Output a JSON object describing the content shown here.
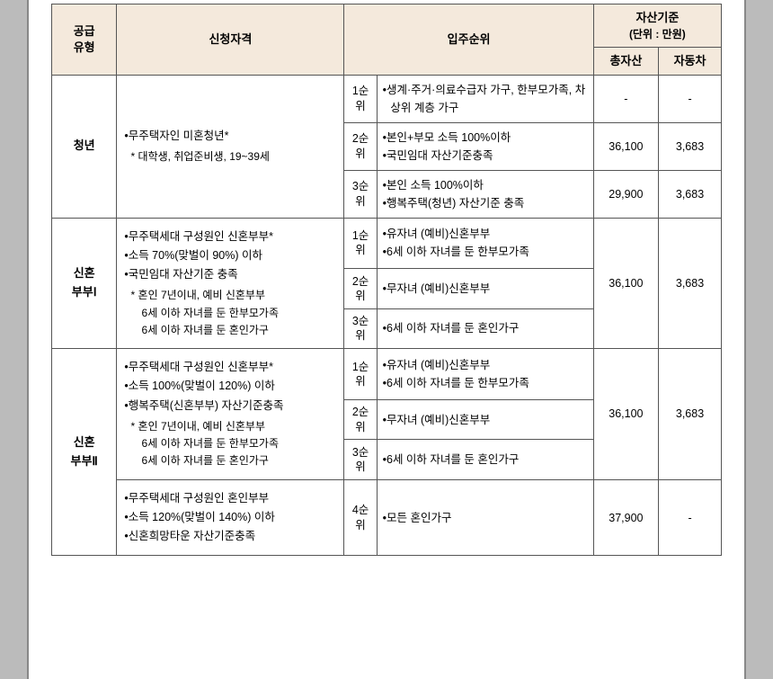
{
  "header": {
    "supplyType": "공급\n유형",
    "qualification": "신청자격",
    "priority": "입주순위",
    "assetStd": "자산기준",
    "assetUnit": "(단위 : 만원)",
    "totalAsset": "총자산",
    "car": "자동차"
  },
  "rows": [
    {
      "type": "청년",
      "qual_lines": [
        {
          "t": "bullet",
          "text": "•무주택자인 미혼청년*"
        },
        {
          "t": "note",
          "text": "* 대학생, 취업준비생, 19~39세"
        }
      ],
      "ranks": [
        {
          "rank": "1순위",
          "details": [
            "•생계·주거·의료수급자 가구, 한부모가족, 차상위 계층 가구"
          ],
          "asset": "-",
          "car": "-"
        },
        {
          "rank": "2순위",
          "details": [
            "•본인+부모 소득 100%이하",
            "•국민임대 자산기준충족"
          ],
          "asset": "36,100",
          "car": "3,683"
        },
        {
          "rank": "3순위",
          "details": [
            "•본인 소득 100%이하",
            "•행복주택(청년) 자산기준 충족"
          ],
          "asset": "29,900",
          "car": "3,683"
        }
      ]
    },
    {
      "type": "신혼\n부부Ⅰ",
      "qual_lines": [
        {
          "t": "bullet",
          "text": "•무주택세대 구성원인 신혼부부*"
        },
        {
          "t": "bullet",
          "text": "•소득 70%(맞벌이 90%) 이하"
        },
        {
          "t": "bullet",
          "text": "•국민임대 자산기준 충족"
        },
        {
          "t": "note",
          "text": "* 혼인 7년이내, 예비 신혼부부"
        },
        {
          "t": "sub",
          "text": "6세 이하 자녀를 둔 한부모가족"
        },
        {
          "t": "sub",
          "text": "6세 이하 자녀를 둔 혼인가구"
        }
      ],
      "ranks": [
        {
          "rank": "1순위",
          "details": [
            "•유자녀 (예비)신혼부부",
            "•6세 이하 자녀를 둔 한부모가족"
          ]
        },
        {
          "rank": "2순위",
          "details": [
            "•무자녀 (예비)신혼부부"
          ]
        },
        {
          "rank": "3순위",
          "details": [
            "•6세 이하 자녀를 둔 혼인가구"
          ]
        }
      ],
      "asset_merged": "36,100",
      "car_merged": "3,683"
    },
    {
      "type": "신혼\n부부Ⅱ",
      "type_rowspan_extra": 1,
      "qual_lines": [
        {
          "t": "bullet",
          "text": "•무주택세대 구성원인 신혼부부*"
        },
        {
          "t": "bullet",
          "text": "•소득 100%(맞벌이 120%) 이하"
        },
        {
          "t": "bullet",
          "text": "•행복주택(신혼부부) 자산기준충족"
        },
        {
          "t": "note",
          "text": "* 혼인 7년이내, 예비 신혼부부"
        },
        {
          "t": "sub",
          "text": "6세 이하 자녀를 둔 한부모가족"
        },
        {
          "t": "sub",
          "text": "6세 이하 자녀를 둔 혼인가구"
        }
      ],
      "ranks": [
        {
          "rank": "1순위",
          "details": [
            "•유자녀 (예비)신혼부부",
            "•6세 이하 자녀를 둔 한부모가족"
          ]
        },
        {
          "rank": "2순위",
          "details": [
            "•무자녀 (예비)신혼부부"
          ]
        },
        {
          "rank": "3순위",
          "details": [
            "•6세 이하 자녀를 둔 혼인가구"
          ]
        }
      ],
      "asset_merged": "36,100",
      "car_merged": "3,683",
      "extra_row": {
        "qual_lines": [
          {
            "t": "bullet",
            "text": "•무주택세대 구성원인 혼인부부"
          },
          {
            "t": "bullet",
            "text": "•소득 120%(맞벌이 140%) 이하"
          },
          {
            "t": "bullet",
            "text": "•신혼희망타운 자산기준충족"
          }
        ],
        "rank": "4순위",
        "details": [
          "•모든 혼인가구"
        ],
        "asset": "37,900",
        "car": "-"
      }
    }
  ]
}
